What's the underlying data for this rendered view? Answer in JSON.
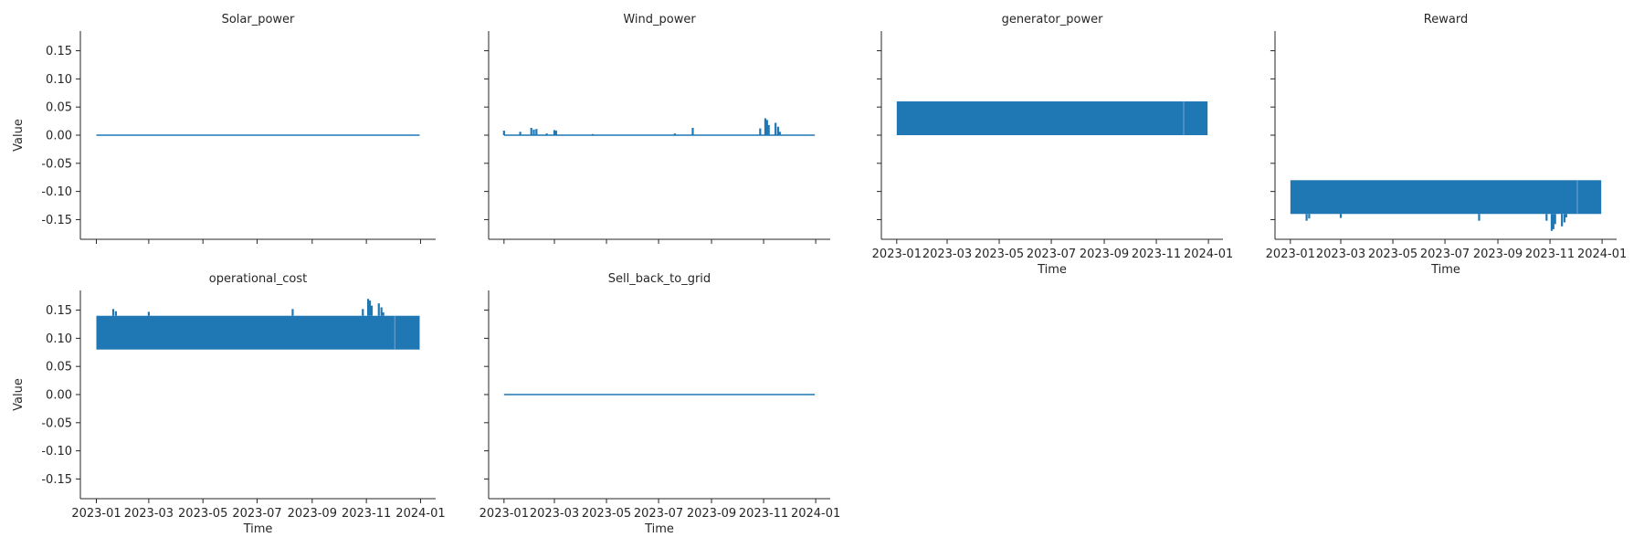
{
  "figure": {
    "accent_color": "#1f77b4",
    "shared_ylabel": "Value",
    "shared_xlabel": "Time"
  },
  "chart_data": [
    {
      "type": "line",
      "title": "Solar_power",
      "xlabel": "",
      "ylabel": "Value",
      "xlim": [
        "2022-12-14",
        "2024-01-18"
      ],
      "ylim": [
        -0.185,
        0.185
      ],
      "xticks": [
        "2023-01",
        "2023-03",
        "2023-05",
        "2023-07",
        "2023-09",
        "2023-11",
        "2024-01"
      ],
      "yticks": [
        -0.15,
        -0.1,
        -0.05,
        0.0,
        0.05,
        0.1,
        0.15
      ],
      "show_xtick_labels": false,
      "grid": false,
      "series": [
        {
          "x": [
            "2023-01-01",
            "2023-07-15",
            "2023-12-31"
          ],
          "y": [
            0.0,
            0.0,
            0.0
          ]
        }
      ]
    },
    {
      "type": "line",
      "title": "Wind_power",
      "xlabel": "",
      "ylabel": "",
      "xlim": [
        "2022-12-14",
        "2024-01-18"
      ],
      "ylim": [
        -0.185,
        0.185
      ],
      "xticks": [
        "2023-01",
        "2023-03",
        "2023-05",
        "2023-07",
        "2023-09",
        "2023-11",
        "2024-01"
      ],
      "yticks": [
        -0.15,
        -0.1,
        -0.05,
        0.0,
        0.05,
        0.1,
        0.15
      ],
      "show_xtick_labels": false,
      "grid": false,
      "series": [
        {
          "x": [
            "2023-01-01",
            "2023-12-31"
          ],
          "y": [
            0.0,
            0.0
          ]
        }
      ],
      "spikes": [
        {
          "x": "2023-01-01",
          "y": 0.008
        },
        {
          "x": "2023-01-20",
          "y": 0.006
        },
        {
          "x": "2023-02-02",
          "y": 0.013
        },
        {
          "x": "2023-02-05",
          "y": 0.01
        },
        {
          "x": "2023-02-08",
          "y": 0.011
        },
        {
          "x": "2023-02-20",
          "y": 0.003
        },
        {
          "x": "2023-03-01",
          "y": 0.009
        },
        {
          "x": "2023-03-03",
          "y": 0.008
        },
        {
          "x": "2023-04-15",
          "y": 0.002
        },
        {
          "x": "2023-07-20",
          "y": 0.003
        },
        {
          "x": "2023-08-10",
          "y": 0.013
        },
        {
          "x": "2023-10-28",
          "y": 0.012
        },
        {
          "x": "2023-11-03",
          "y": 0.03
        },
        {
          "x": "2023-11-05",
          "y": 0.027
        },
        {
          "x": "2023-11-07",
          "y": 0.018
        },
        {
          "x": "2023-11-15",
          "y": 0.022
        },
        {
          "x": "2023-11-18",
          "y": 0.015
        },
        {
          "x": "2023-11-20",
          "y": 0.006
        }
      ]
    },
    {
      "type": "area",
      "title": "generator_power",
      "xlabel": "Time",
      "ylabel": "",
      "xlim": [
        "2022-12-14",
        "2024-01-18"
      ],
      "ylim": [
        -0.185,
        0.185
      ],
      "xticks": [
        "2023-01",
        "2023-03",
        "2023-05",
        "2023-07",
        "2023-09",
        "2023-11",
        "2024-01"
      ],
      "yticks": [
        -0.15,
        -0.1,
        -0.05,
        0.0,
        0.05,
        0.1,
        0.15
      ],
      "show_xtick_labels": true,
      "grid": false,
      "band": {
        "x_start": "2023-01-01",
        "x_end": "2023-12-31",
        "y_low": 0.0,
        "y_high": 0.06,
        "gap_x": "2023-12-03"
      },
      "spikes": []
    },
    {
      "type": "area",
      "title": "Reward",
      "xlabel": "Time",
      "ylabel": "",
      "xlim": [
        "2022-12-14",
        "2024-01-18"
      ],
      "ylim": [
        -0.185,
        0.185
      ],
      "xticks": [
        "2023-01",
        "2023-03",
        "2023-05",
        "2023-07",
        "2023-09",
        "2023-11",
        "2024-01"
      ],
      "yticks": [
        -0.15,
        -0.1,
        -0.05,
        0.0,
        0.05,
        0.1,
        0.15
      ],
      "show_xtick_labels": true,
      "grid": false,
      "band": {
        "x_start": "2023-01-01",
        "x_end": "2023-12-31",
        "y_low": -0.14,
        "y_high": -0.08,
        "gap_x": "2023-12-03"
      },
      "spikes": [
        {
          "x": "2023-01-20",
          "y": -0.152
        },
        {
          "x": "2023-01-23",
          "y": -0.148
        },
        {
          "x": "2023-03-01",
          "y": -0.147
        },
        {
          "x": "2023-08-10",
          "y": -0.152
        },
        {
          "x": "2023-10-28",
          "y": -0.152
        },
        {
          "x": "2023-11-03",
          "y": -0.17
        },
        {
          "x": "2023-11-05",
          "y": -0.167
        },
        {
          "x": "2023-11-07",
          "y": -0.158
        },
        {
          "x": "2023-11-15",
          "y": -0.162
        },
        {
          "x": "2023-11-18",
          "y": -0.155
        },
        {
          "x": "2023-11-20",
          "y": -0.146
        }
      ]
    },
    {
      "type": "area",
      "title": "operational_cost",
      "xlabel": "Time",
      "ylabel": "Value",
      "xlim": [
        "2022-12-14",
        "2024-01-18"
      ],
      "ylim": [
        -0.185,
        0.185
      ],
      "xticks": [
        "2023-01",
        "2023-03",
        "2023-05",
        "2023-07",
        "2023-09",
        "2023-11",
        "2024-01"
      ],
      "yticks": [
        -0.15,
        -0.1,
        -0.05,
        0.0,
        0.05,
        0.1,
        0.15
      ],
      "show_xtick_labels": true,
      "grid": false,
      "band": {
        "x_start": "2023-01-01",
        "x_end": "2023-12-31",
        "y_low": 0.08,
        "y_high": 0.14,
        "gap_x": "2023-12-03"
      },
      "spikes": [
        {
          "x": "2023-01-20",
          "y": 0.152
        },
        {
          "x": "2023-01-23",
          "y": 0.148
        },
        {
          "x": "2023-03-01",
          "y": 0.147
        },
        {
          "x": "2023-08-10",
          "y": 0.152
        },
        {
          "x": "2023-10-28",
          "y": 0.152
        },
        {
          "x": "2023-11-03",
          "y": 0.17
        },
        {
          "x": "2023-11-05",
          "y": 0.167
        },
        {
          "x": "2023-11-07",
          "y": 0.158
        },
        {
          "x": "2023-11-15",
          "y": 0.162
        },
        {
          "x": "2023-11-18",
          "y": 0.155
        },
        {
          "x": "2023-11-20",
          "y": 0.146
        }
      ]
    },
    {
      "type": "line",
      "title": "Sell_back_to_grid",
      "xlabel": "Time",
      "ylabel": "",
      "xlim": [
        "2022-12-14",
        "2024-01-18"
      ],
      "ylim": [
        -0.185,
        0.185
      ],
      "xticks": [
        "2023-01",
        "2023-03",
        "2023-05",
        "2023-07",
        "2023-09",
        "2023-11",
        "2024-01"
      ],
      "yticks": [
        -0.15,
        -0.1,
        -0.05,
        0.0,
        0.05,
        0.1,
        0.15
      ],
      "show_xtick_labels": true,
      "grid": false,
      "series": [
        {
          "x": [
            "2023-01-01",
            "2023-12-31"
          ],
          "y": [
            0.0,
            0.0
          ]
        }
      ]
    }
  ]
}
